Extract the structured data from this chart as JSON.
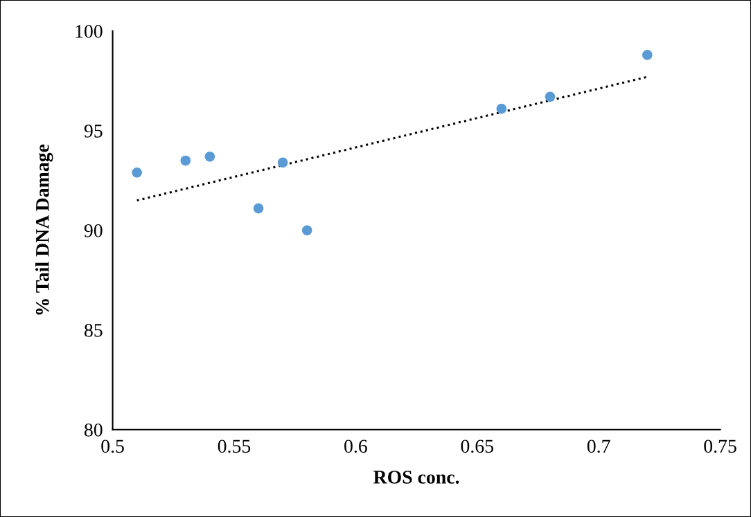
{
  "chart_data": {
    "type": "scatter",
    "xlabel": "ROS conc.",
    "ylabel": "% Tail DNA Damage",
    "xlim": [
      0.5,
      0.75
    ],
    "xticks": [
      0.5,
      0.55,
      0.6,
      0.65,
      0.7,
      0.75
    ],
    "ylim": [
      80,
      100
    ],
    "yticks": [
      80,
      85,
      90,
      95,
      100
    ],
    "grid": false,
    "legend": false,
    "marker": "circle",
    "series": [
      {
        "color": "#5b9bd5",
        "x": [
          0.51,
          0.53,
          0.54,
          0.56,
          0.57,
          0.58,
          0.66,
          0.68,
          0.72
        ],
        "values": [
          92.9,
          93.5,
          93.7,
          91.1,
          93.4,
          90.0,
          96.1,
          96.7,
          98.8
        ]
      },
      {
        "type": "line",
        "color": "#000000",
        "line_style": "dotted",
        "marker": "none",
        "x": [
          0.51,
          0.72
        ],
        "values": [
          91.5,
          97.7
        ]
      }
    ]
  }
}
